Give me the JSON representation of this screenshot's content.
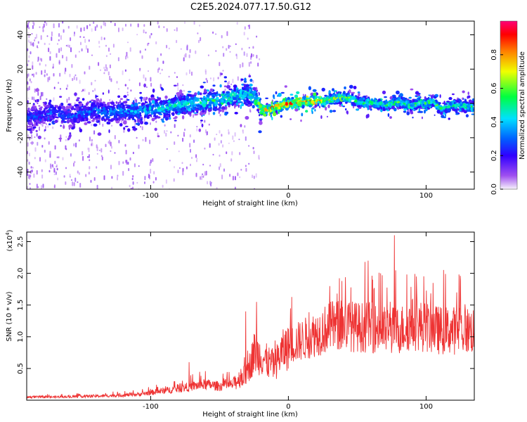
{
  "title": "C2E5.2024.077.17.50.G12",
  "colors": {
    "snr_line": "#ee3333",
    "frame": "#000000",
    "colormap": [
      "#f7f4fb",
      "#a050f0",
      "#3000ff",
      "#0060ff",
      "#00e0ff",
      "#00ff40",
      "#f0ff00",
      "#ff8000",
      "#ff0000",
      "#ff0077"
    ]
  },
  "chart_data": [
    {
      "type": "heatmap",
      "xlabel": "Height of straight line (km)",
      "ylabel": "Frequency (Hz)",
      "xlim": [
        -190,
        135
      ],
      "ylim": [
        -50,
        48
      ],
      "xticks": [
        -100,
        0,
        100
      ],
      "xtick_labels": [
        "-100",
        "0",
        "100"
      ],
      "yticks": [
        -40,
        -20,
        0,
        20,
        40
      ],
      "ytick_labels": [
        "-40",
        "-20",
        "0",
        "20",
        "40"
      ],
      "colorbar": {
        "label": "Normalized spectral amplitude",
        "range": [
          0,
          1
        ],
        "ticks": [
          0,
          0.2,
          0.4,
          0.6,
          0.8
        ],
        "tick_labels": [
          "0.0",
          "0.2",
          "0.4",
          "0.6",
          "0.8"
        ]
      },
      "ridge": {
        "x": [
          -190,
          -180,
          -170,
          -160,
          -150,
          -140,
          -130,
          -120,
          -110,
          -100,
          -90,
          -80,
          -70,
          -60,
          -50,
          -40,
          -35,
          -30,
          -25,
          -22,
          -20,
          -18,
          -15,
          -10,
          -5,
          0,
          5,
          10,
          15,
          20,
          25,
          30,
          35,
          40,
          45,
          50,
          55,
          60,
          65,
          70,
          75,
          80,
          85,
          90,
          95,
          100,
          105,
          110,
          115,
          120,
          125,
          130,
          135
        ],
        "frequency": [
          -8,
          -7,
          -5,
          -8,
          -6,
          -4,
          -6,
          -4,
          -5,
          -3,
          -3,
          -1,
          0,
          1,
          2,
          5,
          4,
          6,
          3,
          1,
          -4,
          -3,
          -4,
          -2,
          -1,
          0,
          0,
          1,
          1,
          2,
          1,
          2,
          3,
          4,
          3,
          1,
          0,
          1,
          0,
          -1,
          0,
          1,
          0,
          -2,
          1,
          0,
          1,
          -3,
          -2,
          -1,
          -1,
          -2,
          -2
        ],
        "peak_amplitude": [
          0.3,
          0.3,
          0.35,
          0.3,
          0.35,
          0.35,
          0.4,
          0.4,
          0.4,
          0.45,
          0.5,
          0.5,
          0.5,
          0.55,
          0.55,
          0.55,
          0.55,
          0.5,
          0.55,
          0.65,
          0.85,
          0.85,
          0.85,
          0.9,
          0.9,
          0.9,
          0.9,
          0.9,
          0.9,
          0.85,
          0.8,
          0.75,
          0.7,
          0.7,
          0.6,
          0.6,
          0.6,
          0.6,
          0.6,
          0.6,
          0.6,
          0.65,
          0.6,
          0.6,
          0.6,
          0.6,
          0.6,
          0.6,
          0.6,
          0.55,
          0.55,
          0.55,
          0.55
        ]
      }
    },
    {
      "type": "line",
      "xlabel": "Height of straight line (km)",
      "ylabel": "SNR (10 * v/v)",
      "y_multiplier": "x10^4",
      "xlim": [
        -190,
        135
      ],
      "ylim": [
        0,
        2.65
      ],
      "xticks": [
        -100,
        0,
        100
      ],
      "xtick_labels": [
        "-100",
        "0",
        "100"
      ],
      "yticks": [
        0.5,
        1.0,
        1.5,
        2.0,
        2.5
      ],
      "ytick_labels": [
        "0.5",
        "1.0",
        "1.5",
        "2.0",
        "2.5"
      ],
      "envelope": {
        "x": [
          -190,
          -170,
          -150,
          -130,
          -110,
          -90,
          -80,
          -70,
          -60,
          -50,
          -40,
          -35,
          -30,
          -28,
          -25,
          -20,
          -15,
          -10,
          -5,
          0,
          10,
          20,
          30,
          40,
          50,
          60,
          70,
          80,
          90,
          100,
          110,
          120,
          135
        ],
        "y": [
          0.05,
          0.05,
          0.06,
          0.07,
          0.09,
          0.15,
          0.18,
          0.22,
          0.25,
          0.22,
          0.25,
          0.35,
          0.4,
          0.55,
          0.75,
          0.7,
          0.6,
          0.55,
          0.75,
          0.85,
          0.95,
          1.05,
          1.15,
          1.2,
          1.15,
          1.15,
          1.1,
          1.1,
          1.2,
          1.15,
          1.1,
          1.1,
          1.1
        ]
      },
      "peaks": [
        {
          "x": 77,
          "y": 2.6
        },
        {
          "x": 58,
          "y": 2.2
        },
        {
          "x": -23,
          "y": 1.55
        },
        {
          "x": -31,
          "y": 1.4
        },
        {
          "x": -72,
          "y": 0.6
        },
        {
          "x": 30,
          "y": 1.8
        },
        {
          "x": 67,
          "y": 2.0
        },
        {
          "x": 93,
          "y": 1.95
        },
        {
          "x": 105,
          "y": 1.85
        }
      ]
    }
  ]
}
